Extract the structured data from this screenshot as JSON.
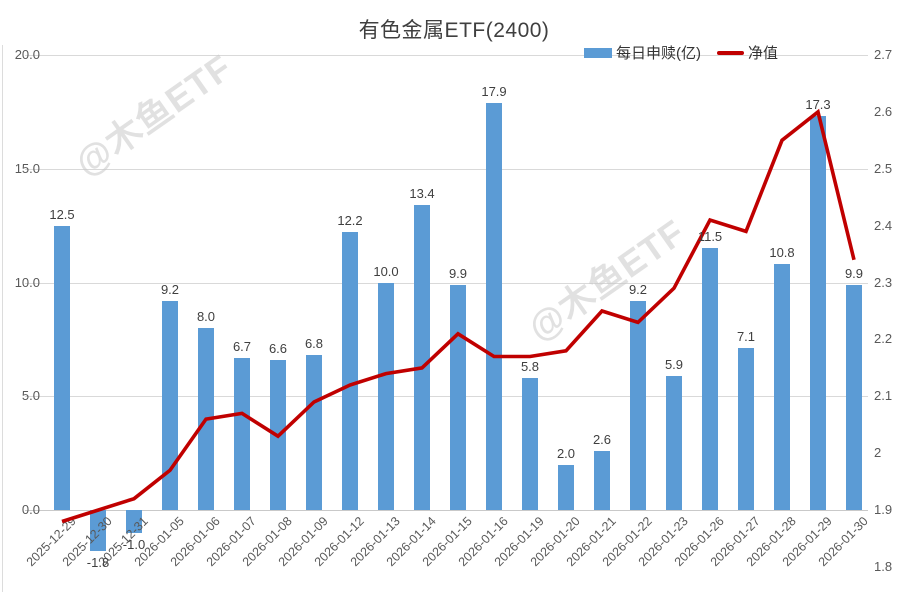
{
  "title": "有色金属ETF(2400)",
  "legend": [
    {
      "label": "每日申赎(亿)",
      "type": "bar",
      "color": "#5b9bd5"
    },
    {
      "label": "净值",
      "type": "line",
      "color": "#c00000"
    }
  ],
  "watermark": {
    "text": "@木鱼ETF"
  },
  "colors": {
    "bar": "#5b9bd5",
    "line": "#c00000",
    "grid": "#d9d9d9",
    "axis_text": "#595959",
    "label_text": "#3f3f3f"
  },
  "chart_data": {
    "type": "bar+line combo, dual axis",
    "title": "有色金属ETF(2400)",
    "grid": true,
    "legend_position": "top-right",
    "categories": [
      "2025-12-29",
      "2025-12-30",
      "2025-12-31",
      "2026-01-05",
      "2026-01-06",
      "2026-01-07",
      "2026-01-08",
      "2026-01-09",
      "2026-01-12",
      "2026-01-13",
      "2026-01-14",
      "2026-01-15",
      "2026-01-16",
      "2026-01-19",
      "2026-01-20",
      "2026-01-21",
      "2026-01-22",
      "2026-01-23",
      "2026-01-26",
      "2026-01-27",
      "2026-01-28",
      "2026-01-29",
      "2026-01-30"
    ],
    "series": [
      {
        "name": "每日申赎(亿)",
        "type": "bar",
        "axis": "left",
        "color": "#5b9bd5",
        "values": [
          12.5,
          -1.8,
          -1.0,
          9.2,
          8.0,
          6.7,
          6.6,
          6.8,
          12.2,
          10.0,
          13.4,
          9.9,
          17.9,
          5.8,
          2.0,
          2.6,
          9.2,
          5.9,
          11.5,
          7.1,
          10.8,
          17.3,
          9.9
        ]
      },
      {
        "name": "净值",
        "type": "line",
        "axis": "right",
        "color": "#c00000",
        "values": [
          1.88,
          1.9,
          1.92,
          1.97,
          2.06,
          2.07,
          2.03,
          2.09,
          2.12,
          2.14,
          2.15,
          2.21,
          2.17,
          2.17,
          2.18,
          2.25,
          2.23,
          2.29,
          2.41,
          2.39,
          2.55,
          2.6,
          2.34
        ]
      }
    ],
    "left_axis": {
      "ticks": [
        "20.0",
        "15.0",
        "10.0",
        "5.0",
        "0.0"
      ],
      "tick_values": [
        20,
        15,
        10,
        5,
        0
      ],
      "min": -2.5,
      "max": 20
    },
    "right_axis": {
      "ticks": [
        "2.7",
        "2.6",
        "2.5",
        "2.4",
        "2.3",
        "2.2",
        "2.1",
        "2",
        "1.9",
        "1.8"
      ],
      "min": 1.8,
      "max": 2.7
    }
  }
}
